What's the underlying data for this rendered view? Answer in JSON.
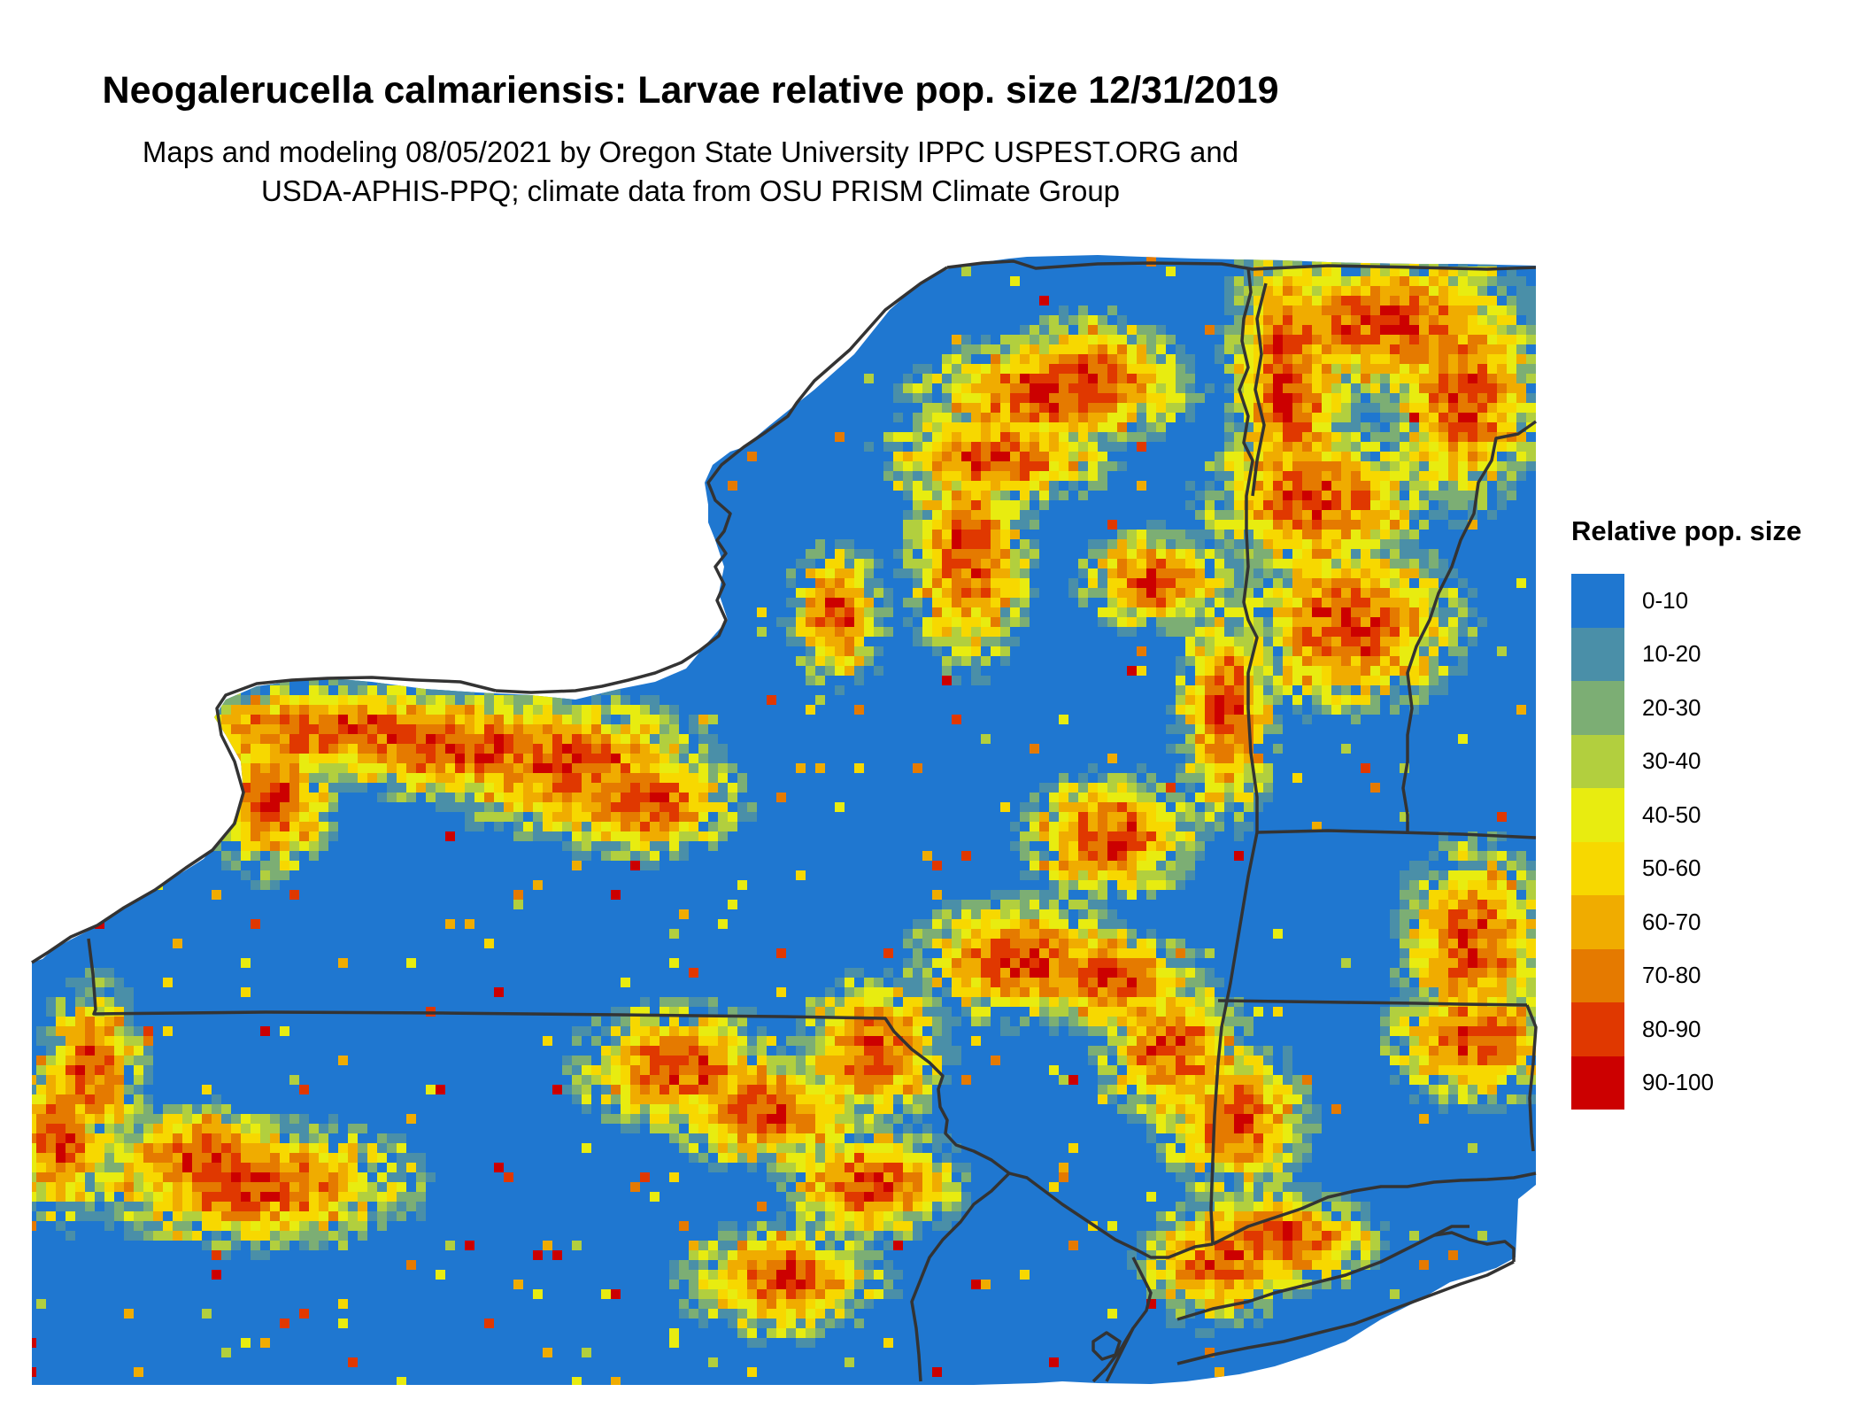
{
  "title": "Neogalerucella calmariensis: Larvae relative pop. size 12/31/2019",
  "subtitle_line1": "Maps and modeling 08/05/2021 by Oregon State University IPPC USPEST.ORG and",
  "subtitle_line2": "USDA-APHIS-PPQ; climate data from OSU PRISM Climate Group",
  "legend": {
    "title": "Relative pop. size",
    "items": [
      {
        "label": "0-10",
        "color": "#1f77d0"
      },
      {
        "label": "10-20",
        "color": "#4a8fa8"
      },
      {
        "label": "20-30",
        "color": "#7cae74"
      },
      {
        "label": "30-40",
        "color": "#b2cf3e"
      },
      {
        "label": "40-50",
        "color": "#e8ec10"
      },
      {
        "label": "50-60",
        "color": "#f7d800"
      },
      {
        "label": "60-70",
        "color": "#f0ac00"
      },
      {
        "label": "70-80",
        "color": "#e57a00"
      },
      {
        "label": "80-90",
        "color": "#e03800"
      },
      {
        "label": "90-100",
        "color": "#cc0000"
      }
    ]
  },
  "map": {
    "background_class": "0-10",
    "boundary_color": "#333333"
  }
}
